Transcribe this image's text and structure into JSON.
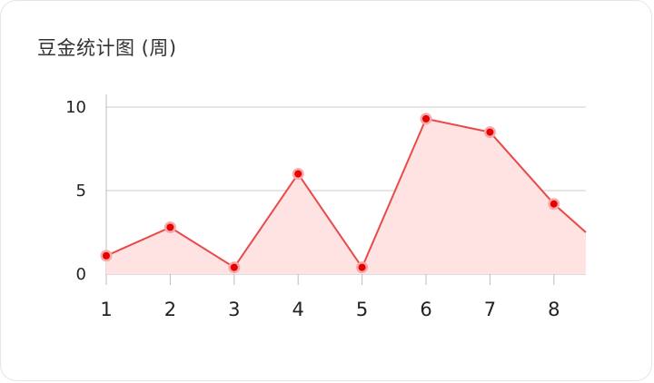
{
  "card": {
    "title": "豆金统计图 (周)"
  },
  "chart_data": {
    "type": "area",
    "title": "豆金统计图 (周)",
    "xlabel": "",
    "ylabel": "",
    "x": [
      1,
      2,
      3,
      4,
      5,
      6,
      7,
      8,
      8.5
    ],
    "values": [
      1.1,
      2.8,
      0.4,
      6.0,
      0.4,
      9.3,
      8.5,
      4.2,
      2.5
    ],
    "marker_count": 8,
    "xticks": [
      1,
      2,
      3,
      4,
      5,
      6,
      7,
      8
    ],
    "yticks": [
      0,
      5,
      10
    ],
    "xlim": [
      1,
      8.5
    ],
    "ylim": [
      0,
      10
    ],
    "grid": true,
    "line_color": "#e84a4a",
    "fill_color": "#ffe2e2",
    "marker_color": "#e60000",
    "marker_halo": "#f7a9a9"
  }
}
